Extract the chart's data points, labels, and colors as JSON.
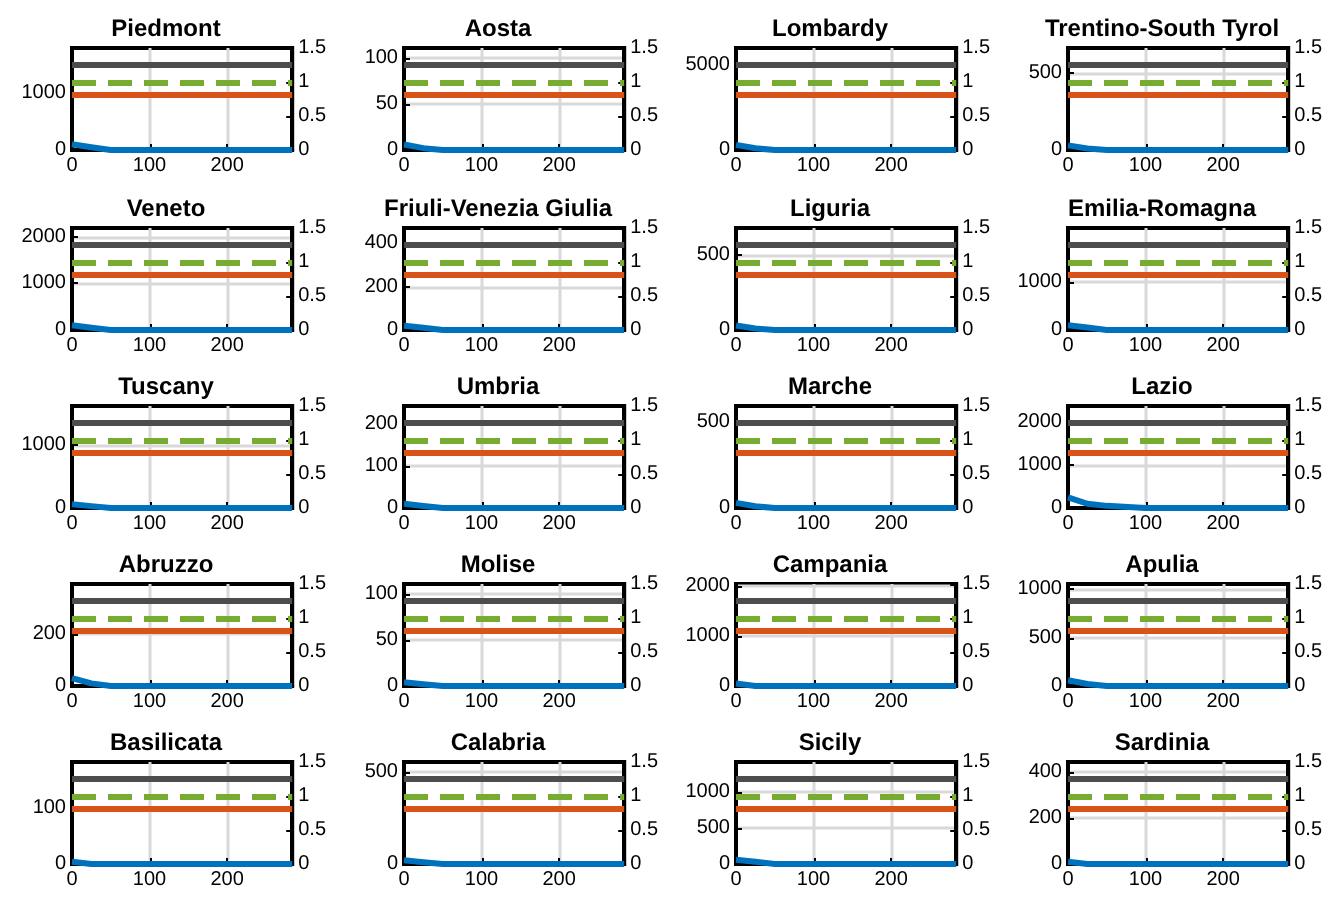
{
  "chart_data": [
    {
      "type": "line",
      "title": "Piedmont",
      "x": [
        0,
        25,
        50,
        100,
        284
      ],
      "xlim": [
        0,
        284
      ],
      "xticks": [
        0,
        100,
        200
      ],
      "ylim": [
        0,
        1800
      ],
      "yticks": [
        0,
        1000
      ],
      "y2lim": [
        0,
        1.5
      ],
      "y2ticks": [
        0,
        0.5,
        1,
        1.5
      ],
      "grid": true,
      "ref_lines": [
        {
          "axis": "y2",
          "value": 1.25,
          "color": "#4d4d4d"
        },
        {
          "axis": "y2",
          "value": 1,
          "color": "#77ac30",
          "line_style": "dashed"
        },
        {
          "axis": "y2",
          "value": 0.83,
          "color": "#d95319"
        }
      ],
      "series": [
        {
          "color": "#0072bd",
          "values": [
            100,
            50,
            0,
            0,
            0
          ]
        }
      ]
    },
    {
      "type": "line",
      "title": "Aosta",
      "x": [
        0,
        25,
        50,
        100,
        284
      ],
      "xlim": [
        0,
        284
      ],
      "xticks": [
        0,
        100,
        200
      ],
      "ylim": [
        0,
        111
      ],
      "yticks": [
        0,
        50,
        100
      ],
      "y2lim": [
        0,
        1.5
      ],
      "y2ticks": [
        0,
        0.5,
        1,
        1.5
      ],
      "grid": true,
      "ref_lines": [
        {
          "axis": "y2",
          "value": 1.25,
          "color": "#4d4d4d"
        },
        {
          "axis": "y2",
          "value": 1,
          "color": "#77ac30",
          "line_style": "dashed"
        },
        {
          "axis": "y2",
          "value": 0.83,
          "color": "#d95319"
        }
      ],
      "series": [
        {
          "color": "#0072bd",
          "values": [
            6,
            2,
            0,
            0,
            0
          ]
        }
      ]
    },
    {
      "type": "line",
      "title": "Lombardy",
      "x": [
        0,
        25,
        50,
        100,
        284
      ],
      "xlim": [
        0,
        284
      ],
      "xticks": [
        0,
        100,
        200
      ],
      "ylim": [
        0,
        6000
      ],
      "yticks": [
        0,
        5000
      ],
      "y2lim": [
        0,
        1.5
      ],
      "y2ticks": [
        0,
        0.5,
        1,
        1.5
      ],
      "grid": true,
      "ref_lines": [
        {
          "axis": "y2",
          "value": 1.25,
          "color": "#4d4d4d"
        },
        {
          "axis": "y2",
          "value": 1,
          "color": "#77ac30",
          "line_style": "dashed"
        },
        {
          "axis": "y2",
          "value": 0.83,
          "color": "#d95319"
        }
      ],
      "series": [
        {
          "color": "#0072bd",
          "values": [
            300,
            100,
            0,
            0,
            0
          ]
        }
      ]
    },
    {
      "type": "line",
      "title": "Trentino-South Tyrol",
      "x": [
        0,
        25,
        50,
        100,
        284
      ],
      "xlim": [
        0,
        284
      ],
      "xticks": [
        0,
        100,
        200
      ],
      "ylim": [
        0,
        665
      ],
      "yticks": [
        0,
        500
      ],
      "y2lim": [
        0,
        1.5
      ],
      "y2ticks": [
        0,
        0.5,
        1,
        1.5
      ],
      "grid": true,
      "ref_lines": [
        {
          "axis": "y2",
          "value": 1.25,
          "color": "#4d4d4d"
        },
        {
          "axis": "y2",
          "value": 1,
          "color": "#77ac30",
          "line_style": "dashed"
        },
        {
          "axis": "y2",
          "value": 0.83,
          "color": "#d95319"
        }
      ],
      "series": [
        {
          "color": "#0072bd",
          "values": [
            30,
            10,
            0,
            0,
            0
          ]
        }
      ]
    },
    {
      "type": "line",
      "title": "Veneto",
      "x": [
        0,
        25,
        50,
        100,
        284
      ],
      "xlim": [
        0,
        284
      ],
      "xticks": [
        0,
        100,
        200
      ],
      "ylim": [
        0,
        2190
      ],
      "yticks": [
        0,
        1000,
        2000
      ],
      "y2lim": [
        0,
        1.5
      ],
      "y2ticks": [
        0,
        0.5,
        1,
        1.5
      ],
      "grid": true,
      "ref_lines": [
        {
          "axis": "y2",
          "value": 1.25,
          "color": "#4d4d4d"
        },
        {
          "axis": "y2",
          "value": 1,
          "color": "#77ac30",
          "line_style": "dashed"
        },
        {
          "axis": "y2",
          "value": 0.83,
          "color": "#d95319"
        }
      ],
      "series": [
        {
          "color": "#0072bd",
          "values": [
            100,
            50,
            0,
            0,
            0
          ]
        }
      ]
    },
    {
      "type": "line",
      "title": "Friuli-Venezia Giulia",
      "x": [
        0,
        25,
        50,
        100,
        284
      ],
      "xlim": [
        0,
        284
      ],
      "xticks": [
        0,
        100,
        200
      ],
      "ylim": [
        0,
        470
      ],
      "yticks": [
        0,
        200,
        400
      ],
      "y2lim": [
        0,
        1.5
      ],
      "y2ticks": [
        0,
        0.5,
        1,
        1.5
      ],
      "grid": true,
      "ref_lines": [
        {
          "axis": "y2",
          "value": 1.25,
          "color": "#4d4d4d"
        },
        {
          "axis": "y2",
          "value": 1,
          "color": "#77ac30",
          "line_style": "dashed"
        },
        {
          "axis": "y2",
          "value": 0.83,
          "color": "#d95319"
        }
      ],
      "series": [
        {
          "color": "#0072bd",
          "values": [
            20,
            10,
            0,
            0,
            0
          ]
        }
      ]
    },
    {
      "type": "line",
      "title": "Liguria",
      "x": [
        0,
        25,
        50,
        100,
        284
      ],
      "xlim": [
        0,
        284
      ],
      "xticks": [
        0,
        100,
        200
      ],
      "ylim": [
        0,
        677
      ],
      "yticks": [
        0,
        500
      ],
      "y2lim": [
        0,
        1.5
      ],
      "y2ticks": [
        0,
        0.5,
        1,
        1.5
      ],
      "grid": true,
      "ref_lines": [
        {
          "axis": "y2",
          "value": 1.25,
          "color": "#4d4d4d"
        },
        {
          "axis": "y2",
          "value": 1,
          "color": "#77ac30",
          "line_style": "dashed"
        },
        {
          "axis": "y2",
          "value": 0.83,
          "color": "#d95319"
        }
      ],
      "series": [
        {
          "color": "#0072bd",
          "values": [
            30,
            10,
            0,
            0,
            0
          ]
        }
      ]
    },
    {
      "type": "line",
      "title": "Emilia-Romagna",
      "x": [
        0,
        25,
        50,
        100,
        284
      ],
      "xlim": [
        0,
        284
      ],
      "xticks": [
        0,
        100,
        200
      ],
      "ylim": [
        0,
        2125
      ],
      "yticks": [
        0,
        1000
      ],
      "y2lim": [
        0,
        1.5
      ],
      "y2ticks": [
        0,
        0.5,
        1,
        1.5
      ],
      "grid": true,
      "ref_lines": [
        {
          "axis": "y2",
          "value": 1.25,
          "color": "#4d4d4d"
        },
        {
          "axis": "y2",
          "value": 1,
          "color": "#77ac30",
          "line_style": "dashed"
        },
        {
          "axis": "y2",
          "value": 0.83,
          "color": "#d95319"
        }
      ],
      "series": [
        {
          "color": "#0072bd",
          "values": [
            100,
            50,
            0,
            0,
            0
          ]
        }
      ]
    },
    {
      "type": "line",
      "title": "Tuscany",
      "x": [
        0,
        25,
        50,
        100,
        284
      ],
      "xlim": [
        0,
        284
      ],
      "xticks": [
        0,
        100,
        200
      ],
      "ylim": [
        0,
        1630
      ],
      "yticks": [
        0,
        1000
      ],
      "y2lim": [
        0,
        1.5
      ],
      "y2ticks": [
        0,
        0.5,
        1,
        1.5
      ],
      "grid": true,
      "ref_lines": [
        {
          "axis": "y2",
          "value": 1.25,
          "color": "#4d4d4d"
        },
        {
          "axis": "y2",
          "value": 1,
          "color": "#77ac30",
          "line_style": "dashed"
        },
        {
          "axis": "y2",
          "value": 0.83,
          "color": "#d95319"
        }
      ],
      "series": [
        {
          "color": "#0072bd",
          "values": [
            60,
            30,
            0,
            0,
            0
          ]
        }
      ]
    },
    {
      "type": "line",
      "title": "Umbria",
      "x": [
        0,
        25,
        50,
        100,
        284
      ],
      "xlim": [
        0,
        284
      ],
      "xticks": [
        0,
        100,
        200
      ],
      "ylim": [
        0,
        242
      ],
      "yticks": [
        0,
        100,
        200
      ],
      "y2lim": [
        0,
        1.5
      ],
      "y2ticks": [
        0,
        0.5,
        1,
        1.5
      ],
      "grid": true,
      "ref_lines": [
        {
          "axis": "y2",
          "value": 1.25,
          "color": "#4d4d4d"
        },
        {
          "axis": "y2",
          "value": 1,
          "color": "#77ac30",
          "line_style": "dashed"
        },
        {
          "axis": "y2",
          "value": 0.83,
          "color": "#d95319"
        }
      ],
      "series": [
        {
          "color": "#0072bd",
          "values": [
            10,
            5,
            0,
            0,
            0
          ]
        }
      ]
    },
    {
      "type": "line",
      "title": "Marche",
      "x": [
        0,
        25,
        50,
        100,
        284
      ],
      "xlim": [
        0,
        284
      ],
      "xticks": [
        0,
        100,
        200
      ],
      "ylim": [
        0,
        596
      ],
      "yticks": [
        0,
        500
      ],
      "y2lim": [
        0,
        1.5
      ],
      "y2ticks": [
        0,
        0.5,
        1,
        1.5
      ],
      "grid": true,
      "ref_lines": [
        {
          "axis": "y2",
          "value": 1.25,
          "color": "#4d4d4d"
        },
        {
          "axis": "y2",
          "value": 1,
          "color": "#77ac30",
          "line_style": "dashed"
        },
        {
          "axis": "y2",
          "value": 0.83,
          "color": "#d95319"
        }
      ],
      "series": [
        {
          "color": "#0072bd",
          "values": [
            30,
            10,
            0,
            0,
            0
          ]
        }
      ]
    },
    {
      "type": "line",
      "title": "Lazio",
      "x": [
        0,
        25,
        50,
        100,
        284
      ],
      "xlim": [
        0,
        284
      ],
      "xticks": [
        0,
        100,
        200
      ],
      "ylim": [
        0,
        2385
      ],
      "yticks": [
        0,
        1000,
        2000
      ],
      "y2lim": [
        0,
        1.5
      ],
      "y2ticks": [
        0,
        0.5,
        1,
        1.5
      ],
      "grid": true,
      "ref_lines": [
        {
          "axis": "y2",
          "value": 1.25,
          "color": "#4d4d4d"
        },
        {
          "axis": "y2",
          "value": 1,
          "color": "#77ac30",
          "line_style": "dashed"
        },
        {
          "axis": "y2",
          "value": 0.83,
          "color": "#d95319"
        }
      ],
      "series": [
        {
          "color": "#0072bd",
          "values": [
            250,
            100,
            50,
            0,
            0
          ]
        }
      ]
    },
    {
      "type": "line",
      "title": "Abruzzo",
      "x": [
        0,
        25,
        50,
        100,
        284
      ],
      "xlim": [
        0,
        284
      ],
      "xticks": [
        0,
        100,
        200
      ],
      "ylim": [
        0,
        392
      ],
      "yticks": [
        0,
        200
      ],
      "y2lim": [
        0,
        1.5
      ],
      "y2ticks": [
        0,
        0.5,
        1,
        1.5
      ],
      "grid": true,
      "ref_lines": [
        {
          "axis": "y2",
          "value": 1.25,
          "color": "#4d4d4d"
        },
        {
          "axis": "y2",
          "value": 1,
          "color": "#77ac30",
          "line_style": "dashed"
        },
        {
          "axis": "y2",
          "value": 0.83,
          "color": "#d95319"
        }
      ],
      "series": [
        {
          "color": "#0072bd",
          "values": [
            30,
            10,
            0,
            0,
            0
          ]
        }
      ]
    },
    {
      "type": "line",
      "title": "Molise",
      "x": [
        0,
        25,
        50,
        100,
        284
      ],
      "xlim": [
        0,
        284
      ],
      "xticks": [
        0,
        100,
        200
      ],
      "ylim": [
        0,
        111
      ],
      "yticks": [
        0,
        50,
        100
      ],
      "y2lim": [
        0,
        1.5
      ],
      "y2ticks": [
        0,
        0.5,
        1,
        1.5
      ],
      "grid": true,
      "ref_lines": [
        {
          "axis": "y2",
          "value": 1.25,
          "color": "#4d4d4d"
        },
        {
          "axis": "y2",
          "value": 1,
          "color": "#77ac30",
          "line_style": "dashed"
        },
        {
          "axis": "y2",
          "value": 0.83,
          "color": "#d95319"
        }
      ],
      "series": [
        {
          "color": "#0072bd",
          "values": [
            4,
            2,
            0,
            0,
            0
          ]
        }
      ]
    },
    {
      "type": "line",
      "title": "Campania",
      "x": [
        0,
        25,
        50,
        100,
        284
      ],
      "xlim": [
        0,
        284
      ],
      "xticks": [
        0,
        100,
        200
      ],
      "ylim": [
        0,
        2030
      ],
      "yticks": [
        0,
        1000,
        2000
      ],
      "y2lim": [
        0,
        1.5
      ],
      "y2ticks": [
        0,
        0.5,
        1,
        1.5
      ],
      "grid": true,
      "ref_lines": [
        {
          "axis": "y2",
          "value": 1.25,
          "color": "#4d4d4d"
        },
        {
          "axis": "y2",
          "value": 1,
          "color": "#77ac30",
          "line_style": "dashed"
        },
        {
          "axis": "y2",
          "value": 0.83,
          "color": "#d95319"
        }
      ],
      "series": [
        {
          "color": "#0072bd",
          "values": [
            50,
            0,
            0,
            0,
            0
          ]
        }
      ]
    },
    {
      "type": "line",
      "title": "Apulia",
      "x": [
        0,
        25,
        50,
        100,
        284
      ],
      "xlim": [
        0,
        284
      ],
      "xticks": [
        0,
        100,
        200
      ],
      "ylim": [
        0,
        1055
      ],
      "yticks": [
        0,
        500,
        1000
      ],
      "y2lim": [
        0,
        1.5
      ],
      "y2ticks": [
        0,
        0.5,
        1,
        1.5
      ],
      "grid": true,
      "ref_lines": [
        {
          "axis": "y2",
          "value": 1.25,
          "color": "#4d4d4d"
        },
        {
          "axis": "y2",
          "value": 1,
          "color": "#77ac30",
          "line_style": "dashed"
        },
        {
          "axis": "y2",
          "value": 0.83,
          "color": "#d95319"
        }
      ],
      "series": [
        {
          "color": "#0072bd",
          "values": [
            60,
            20,
            0,
            0,
            0
          ]
        }
      ]
    },
    {
      "type": "line",
      "title": "Basilicata",
      "x": [
        0,
        25,
        50,
        100,
        284
      ],
      "xlim": [
        0,
        284
      ],
      "xticks": [
        0,
        100,
        200
      ],
      "ylim": [
        0,
        182
      ],
      "yticks": [
        0,
        100
      ],
      "y2lim": [
        0,
        1.5
      ],
      "y2ticks": [
        0,
        0.5,
        1,
        1.5
      ],
      "grid": true,
      "ref_lines": [
        {
          "axis": "y2",
          "value": 1.25,
          "color": "#4d4d4d"
        },
        {
          "axis": "y2",
          "value": 1,
          "color": "#77ac30",
          "line_style": "dashed"
        },
        {
          "axis": "y2",
          "value": 0.83,
          "color": "#d95319"
        }
      ],
      "series": [
        {
          "color": "#0072bd",
          "values": [
            4,
            0,
            0,
            0,
            0
          ]
        }
      ]
    },
    {
      "type": "line",
      "title": "Calabria",
      "x": [
        0,
        25,
        50,
        100,
        284
      ],
      "xlim": [
        0,
        284
      ],
      "xticks": [
        0,
        100,
        200
      ],
      "ylim": [
        0,
        554
      ],
      "yticks": [
        0,
        500
      ],
      "y2lim": [
        0,
        1.5
      ],
      "y2ticks": [
        0,
        0.5,
        1,
        1.5
      ],
      "grid": true,
      "ref_lines": [
        {
          "axis": "y2",
          "value": 1.25,
          "color": "#4d4d4d"
        },
        {
          "axis": "y2",
          "value": 1,
          "color": "#77ac30",
          "line_style": "dashed"
        },
        {
          "axis": "y2",
          "value": 0.83,
          "color": "#d95319"
        }
      ],
      "series": [
        {
          "color": "#0072bd",
          "values": [
            20,
            10,
            0,
            0,
            0
          ]
        }
      ]
    },
    {
      "type": "line",
      "title": "Sicily",
      "x": [
        0,
        25,
        50,
        100,
        284
      ],
      "xlim": [
        0,
        284
      ],
      "xticks": [
        0,
        100,
        200
      ],
      "ylim": [
        0,
        1409
      ],
      "yticks": [
        0,
        500,
        1000
      ],
      "y2lim": [
        0,
        1.5
      ],
      "y2ticks": [
        0,
        0.5,
        1,
        1.5
      ],
      "grid": true,
      "ref_lines": [
        {
          "axis": "y2",
          "value": 1.25,
          "color": "#4d4d4d"
        },
        {
          "axis": "y2",
          "value": 1,
          "color": "#77ac30",
          "line_style": "dashed"
        },
        {
          "axis": "y2",
          "value": 0.83,
          "color": "#d95319"
        }
      ],
      "series": [
        {
          "color": "#0072bd",
          "values": [
            60,
            30,
            0,
            0,
            0
          ]
        }
      ]
    },
    {
      "type": "line",
      "title": "Sardinia",
      "x": [
        0,
        25,
        50,
        100,
        284
      ],
      "xlim": [
        0,
        284
      ],
      "xticks": [
        0,
        100,
        200
      ],
      "ylim": [
        0,
        443
      ],
      "yticks": [
        0,
        200,
        400
      ],
      "y2lim": [
        0,
        1.5
      ],
      "y2ticks": [
        0,
        0.5,
        1,
        1.5
      ],
      "grid": true,
      "ref_lines": [
        {
          "axis": "y2",
          "value": 1.25,
          "color": "#4d4d4d"
        },
        {
          "axis": "y2",
          "value": 1,
          "color": "#77ac30",
          "line_style": "dashed"
        },
        {
          "axis": "y2",
          "value": 0.83,
          "color": "#d95319"
        }
      ],
      "series": [
        {
          "color": "#0072bd",
          "values": [
            10,
            0,
            0,
            0,
            0
          ]
        }
      ]
    }
  ]
}
